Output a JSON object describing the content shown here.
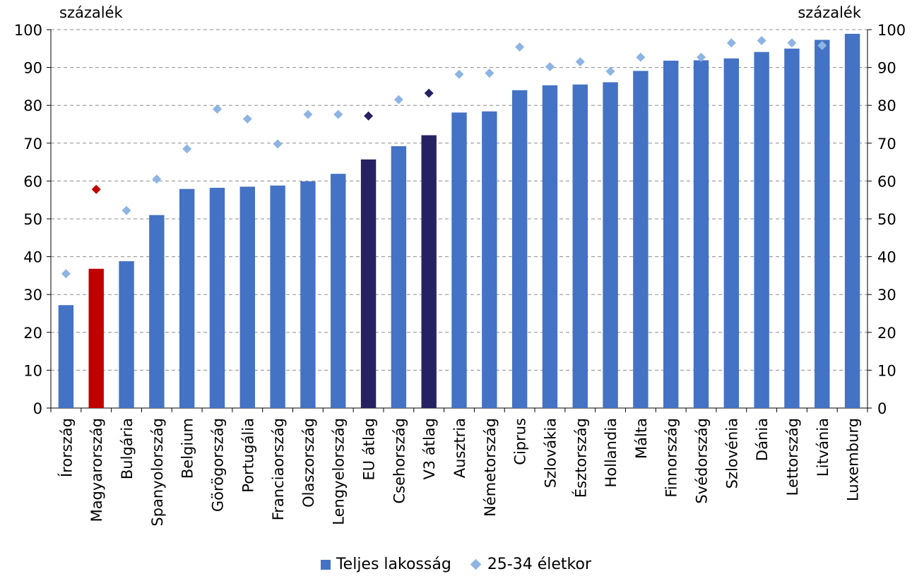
{
  "chart_data": {
    "type": "bar",
    "y_unit_left": "százalék",
    "y_unit_right": "százalék",
    "ylim": [
      0,
      100
    ],
    "ytick_step": 10,
    "grid": true,
    "legend_position": "bottom",
    "categories": [
      "Írország",
      "Magyarország",
      "Bulgária",
      "Spanyolország",
      "Belgium",
      "Görögország",
      "Portugália",
      "Franciaország",
      "Olaszország",
      "Lengyelország",
      "EU átlag",
      "Csehország",
      "V3 átlag",
      "Ausztria",
      "Németország",
      "Ciprus",
      "Szlovákia",
      "Észtország",
      "Hollandia",
      "Málta",
      "Finnország",
      "Svédország",
      "Szlovénia",
      "Dánia",
      "Lettország",
      "Litvánia",
      "Luxemburg"
    ],
    "series": [
      {
        "name": "Teljes lakosság",
        "kind": "bar",
        "color": "#4472C4",
        "values": [
          27.2,
          36.8,
          38.8,
          51.0,
          57.9,
          58.2,
          58.5,
          58.8,
          59.9,
          61.9,
          65.7,
          69.2,
          72.1,
          78.1,
          78.4,
          84.0,
          85.3,
          85.5,
          86.1,
          89.1,
          91.8,
          91.9,
          92.4,
          94.1,
          95.0,
          97.3,
          98.9
        ]
      },
      {
        "name": "25-34 életkor",
        "kind": "marker",
        "color": "#8EB4E3",
        "values": [
          35.5,
          57.8,
          52.2,
          60.5,
          68.5,
          79.0,
          76.4,
          69.8,
          77.6,
          77.6,
          77.2,
          81.5,
          83.2,
          88.2,
          88.5,
          95.4,
          90.2,
          91.5,
          89.0,
          92.7,
          null,
          92.7,
          96.5,
          97.1,
          96.5,
          95.8,
          null
        ]
      }
    ],
    "highlight_colors": {
      "Magyarország": "#C00000",
      "EU átlag": "#262262",
      "V3 átlag": "#262262"
    },
    "highlight_marker_colors": {
      "Magyarország": "#C00000",
      "EU átlag": "#262262",
      "V3 átlag": "#262262"
    }
  }
}
